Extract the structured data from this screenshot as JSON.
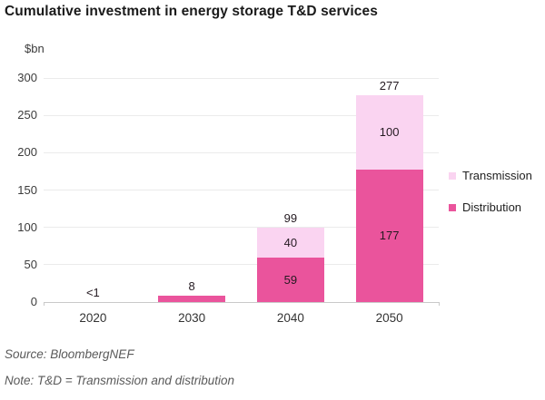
{
  "title": "Cumulative investment in energy storage T&D services",
  "chart_data": {
    "type": "bar",
    "stacked": true,
    "title": "Cumulative investment in energy storage T&D services",
    "ylabel": "$bn",
    "categories": [
      "2020",
      "2030",
      "2040",
      "2050"
    ],
    "series": [
      {
        "name": "Distribution",
        "color": "#ea549c",
        "values": [
          0.5,
          8,
          59,
          177
        ],
        "segment_labels": [
          "",
          "",
          "59",
          "177"
        ]
      },
      {
        "name": "Transmission",
        "color": "#fad4f1",
        "values": [
          0,
          0,
          40,
          100
        ],
        "segment_labels": [
          "",
          "",
          "40",
          "100"
        ]
      }
    ],
    "total_labels": [
      "<1",
      "8",
      "99",
      "277"
    ],
    "yticks": [
      0,
      50,
      100,
      150,
      200,
      250,
      300
    ],
    "ylim": [
      0,
      300
    ],
    "grid": true,
    "legend_position": "right"
  },
  "legend": {
    "items": [
      {
        "label": "Transmission",
        "color": "#fad4f1"
      },
      {
        "label": "Distribution",
        "color": "#ea549c"
      }
    ]
  },
  "footer": {
    "source": "Source: BloombergNEF",
    "note": "Note: T&D = Transmission and distribution"
  },
  "colors": {
    "distribution": "#ea549c",
    "transmission": "#fad4f1",
    "gridline": "#ebebeb",
    "axis": "#c9c9c9",
    "label_text": "#241a21",
    "muted_text": "#5a5a5a"
  }
}
